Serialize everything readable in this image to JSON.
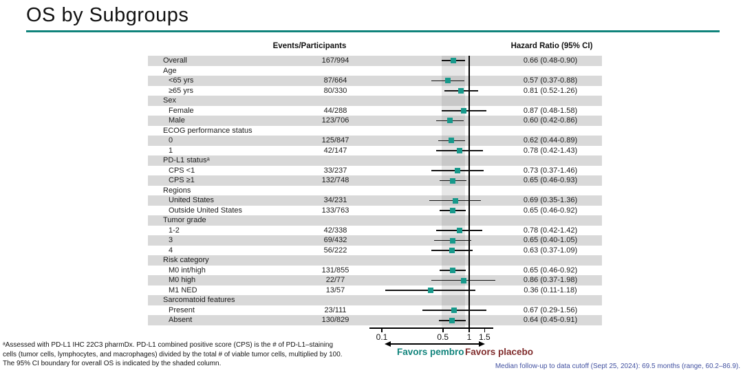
{
  "title": "OS by Subgroups",
  "columns": {
    "events_header": "Events/Participants",
    "hr_header": "Hazard Ratio (95% CI)"
  },
  "chart_data": {
    "type": "forest",
    "x_scale": "log",
    "x_ticks": [
      0.1,
      0.5,
      1,
      1.5
    ],
    "reference_line": 1,
    "shaded_band": [
      0.48,
      0.9
    ],
    "shaded_band_meaning": "95% CI boundary for overall OS",
    "rows": [
      {
        "label": "Overall",
        "level": 0,
        "events": "167/994",
        "hr": 0.66,
        "lo": 0.48,
        "hi": 0.9,
        "hr_text": "0.66 (0.48-0.90)"
      },
      {
        "label": "Age",
        "level": 0
      },
      {
        "label": "<65 yrs",
        "level": 1,
        "events": "87/664",
        "hr": 0.57,
        "lo": 0.37,
        "hi": 0.88,
        "hr_text": "0.57 (0.37-0.88)"
      },
      {
        "label": "≥65 yrs",
        "level": 1,
        "events": "80/330",
        "hr": 0.81,
        "lo": 0.52,
        "hi": 1.26,
        "hr_text": "0.81 (0.52-1.26)"
      },
      {
        "label": "Sex",
        "level": 0
      },
      {
        "label": "Female",
        "level": 1,
        "events": "44/288",
        "hr": 0.87,
        "lo": 0.48,
        "hi": 1.58,
        "hr_text": "0.87 (0.48-1.58)"
      },
      {
        "label": "Male",
        "level": 1,
        "events": "123/706",
        "hr": 0.6,
        "lo": 0.42,
        "hi": 0.86,
        "hr_text": "0.60 (0.42-0.86)"
      },
      {
        "label": "ECOG performance status",
        "level": 0
      },
      {
        "label": "0",
        "level": 1,
        "events": "125/847",
        "hr": 0.62,
        "lo": 0.44,
        "hi": 0.89,
        "hr_text": "0.62 (0.44-0.89)"
      },
      {
        "label": "1",
        "level": 1,
        "events": "42/147",
        "hr": 0.78,
        "lo": 0.42,
        "hi": 1.43,
        "hr_text": "0.78 (0.42-1.43)"
      },
      {
        "label": "PD-L1 statusᵃ",
        "level": 0
      },
      {
        "label": "CPS <1",
        "level": 1,
        "events": "33/237",
        "hr": 0.73,
        "lo": 0.37,
        "hi": 1.46,
        "hr_text": "0.73 (0.37-1.46)"
      },
      {
        "label": "CPS ≥1",
        "level": 1,
        "events": "132/748",
        "hr": 0.65,
        "lo": 0.46,
        "hi": 0.93,
        "hr_text": "0.65 (0.46-0.93)"
      },
      {
        "label": "Regions",
        "level": 0
      },
      {
        "label": "United States",
        "level": 1,
        "events": "34/231",
        "hr": 0.69,
        "lo": 0.35,
        "hi": 1.36,
        "hr_text": "0.69 (0.35-1.36)"
      },
      {
        "label": "Outside United States",
        "level": 1,
        "events": "133/763",
        "hr": 0.65,
        "lo": 0.46,
        "hi": 0.92,
        "hr_text": "0.65 (0.46-0.92)"
      },
      {
        "label": "Tumor grade",
        "level": 0
      },
      {
        "label": "1-2",
        "level": 1,
        "events": "42/338",
        "hr": 0.78,
        "lo": 0.42,
        "hi": 1.42,
        "hr_text": "0.78 (0.42-1.42)"
      },
      {
        "label": "3",
        "level": 1,
        "events": "69/432",
        "hr": 0.65,
        "lo": 0.4,
        "hi": 1.05,
        "hr_text": "0.65 (0.40-1.05)"
      },
      {
        "label": "4",
        "level": 1,
        "events": "56/222",
        "hr": 0.63,
        "lo": 0.37,
        "hi": 1.09,
        "hr_text": "0.63 (0.37-1.09)"
      },
      {
        "label": "Risk category",
        "level": 0
      },
      {
        "label": "M0 int/high",
        "level": 1,
        "events": "131/855",
        "hr": 0.65,
        "lo": 0.46,
        "hi": 0.92,
        "hr_text": "0.65 (0.46-0.92)"
      },
      {
        "label": "M0 high",
        "level": 1,
        "events": "22/77",
        "hr": 0.86,
        "lo": 0.37,
        "hi": 1.98,
        "hr_text": "0.86 (0.37-1.98)"
      },
      {
        "label": "M1 NED",
        "level": 1,
        "events": "13/57",
        "hr": 0.36,
        "lo": 0.11,
        "hi": 1.18,
        "hr_text": "0.36 (0.11-1.18)"
      },
      {
        "label": "Sarcomatoid features",
        "level": 0
      },
      {
        "label": "Present",
        "level": 1,
        "events": "23/111",
        "hr": 0.67,
        "lo": 0.29,
        "hi": 1.56,
        "hr_text": "0.67 (0.29-1.56)"
      },
      {
        "label": "Absent",
        "level": 1,
        "events": "130/829",
        "hr": 0.64,
        "lo": 0.45,
        "hi": 0.91,
        "hr_text": "0.64 (0.45-0.91)"
      }
    ]
  },
  "axis_annotations": {
    "favors_left": "Favors pembro",
    "favors_right": "Favors placebo"
  },
  "footnotes": {
    "left_lines": [
      "ᵃAssessed with PD-L1 IHC 22C3 pharmDx. PD-L1 combined positive score (CPS) is the # of PD-L1–staining",
      "cells (tumor cells, lymphocytes, and macrophages) divided by the total # of viable tumor cells, multiplied by 100.",
      "The 95% CI boundary for overall OS is indicated by the shaded column."
    ],
    "right": "Median follow-up to data cutoff (Sept 25, 2024): 69.5 months (range, 60.2–86.9)."
  },
  "colors": {
    "teal_accent": "#0F837B",
    "marker_teal": "#17998B",
    "placebo_maroon": "#7F2B2B",
    "row_gray": "#D9D9D9",
    "followup_blue": "#4150A0"
  }
}
